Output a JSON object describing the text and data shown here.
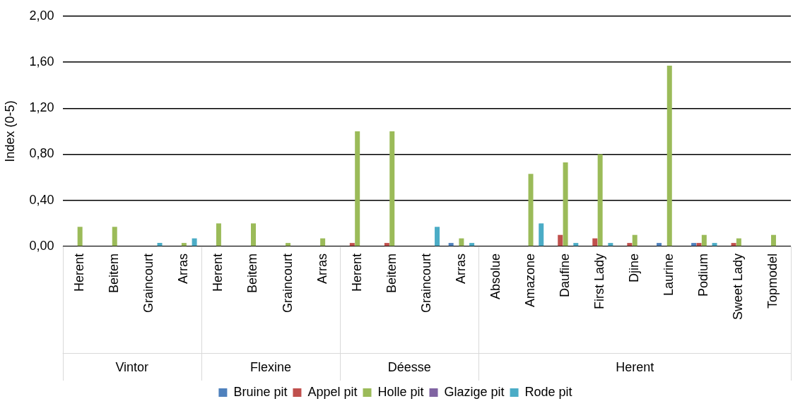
{
  "chart_data": {
    "type": "bar",
    "ylabel": "Index (0-5)",
    "categories": [
      "Herent",
      "Beitem",
      "Graincourt",
      "Arras",
      "Herent",
      "Beitem",
      "Graincourt",
      "Arras",
      "Herent",
      "Beitem",
      "Graincourt",
      "Arras",
      "Absolue",
      "Amazone",
      "Daufine",
      "First Lady",
      "Djine",
      "Laurine",
      "Podium",
      "Sweet Lady",
      "Topmodel"
    ],
    "series": [
      {
        "name": "Bruine pit",
        "color": "#4f81bd",
        "values": [
          0,
          0,
          0,
          0,
          0,
          0,
          0,
          0,
          0,
          0,
          0,
          0.03,
          0,
          0,
          0,
          0,
          0,
          0.03,
          0.03,
          0,
          0
        ]
      },
      {
        "name": "Appel pit",
        "color": "#c0504d",
        "values": [
          0,
          0,
          0,
          0,
          0,
          0,
          0,
          0,
          0.03,
          0.03,
          0,
          0,
          0,
          0,
          0.1,
          0.07,
          0.03,
          0,
          0.03,
          0.03,
          0
        ]
      },
      {
        "name": "Holle pit",
        "color": "#9bbb59",
        "values": [
          0.17,
          0.17,
          0,
          0.03,
          0.2,
          0.2,
          0.03,
          0.07,
          1.0,
          1.0,
          0,
          0.07,
          0,
          0.63,
          0.73,
          0.8,
          0.1,
          1.57,
          0.1,
          0.07,
          0.1
        ]
      },
      {
        "name": "Glazige pit",
        "color": "#8064a2",
        "values": [
          0,
          0,
          0,
          0,
          0,
          0,
          0,
          0,
          0,
          0,
          0,
          0,
          0,
          0,
          0,
          0,
          0,
          0,
          0,
          0,
          0
        ]
      },
      {
        "name": "Rode pit",
        "color": "#4bacc6",
        "values": [
          0,
          0,
          0.03,
          0.07,
          0,
          0,
          0,
          0,
          0,
          0,
          0.17,
          0.03,
          0,
          0.2,
          0.03,
          0.03,
          0,
          0,
          0.03,
          0,
          0
        ]
      }
    ],
    "ylim": [
      0,
      2
    ],
    "yticks": [
      {
        "value": 0,
        "label": "0,00"
      },
      {
        "value": 0.4,
        "label": "0,40"
      },
      {
        "value": 0.8,
        "label": "0,80"
      },
      {
        "value": 1.2,
        "label": "1,20"
      },
      {
        "value": 1.6,
        "label": "1,60"
      },
      {
        "value": 2,
        "label": "2,00"
      }
    ],
    "grid": "y",
    "legend": "bottom",
    "annotations": [
      "Vintor",
      "Flexine",
      "Déesse",
      "Herent"
    ]
  }
}
